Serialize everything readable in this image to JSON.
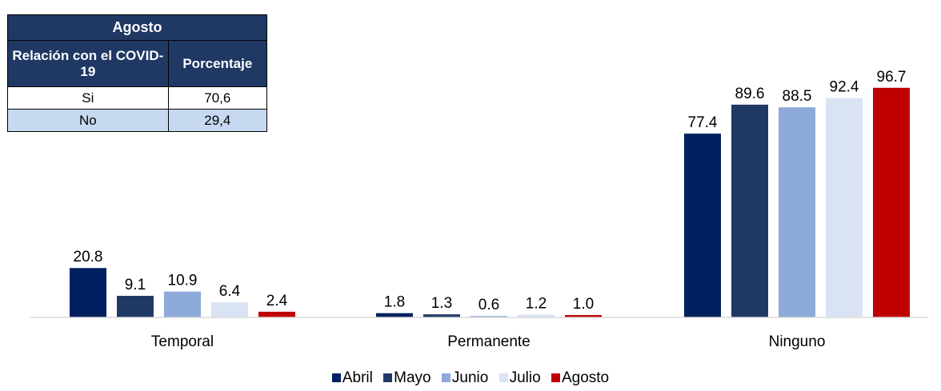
{
  "table": {
    "title": "Agosto",
    "col1_header": "Relación con el COVID-19",
    "col2_header": "Porcentaje",
    "rows": [
      {
        "label": "Si",
        "value": "70,6"
      },
      {
        "label": "No",
        "value": "29,4"
      }
    ]
  },
  "chart_data": {
    "type": "bar",
    "categories": [
      "Temporal",
      "Permanente",
      "Ninguno"
    ],
    "series": [
      {
        "name": "Abril",
        "color": "#002060",
        "values": [
          20.8,
          1.8,
          77.4
        ]
      },
      {
        "name": "Mayo",
        "color": "#203864",
        "values": [
          9.1,
          1.3,
          89.6
        ]
      },
      {
        "name": "Junio",
        "color": "#8eaadb",
        "values": [
          10.9,
          0.6,
          88.5
        ]
      },
      {
        "name": "Julio",
        "color": "#dae3f3",
        "values": [
          6.4,
          1.2,
          92.4
        ]
      },
      {
        "name": "Agosto",
        "color": "#c00000",
        "values": [
          2.4,
          1.0,
          96.7
        ]
      }
    ],
    "ylim": [
      0,
      100
    ],
    "grid": false,
    "legend_position": "bottom"
  }
}
